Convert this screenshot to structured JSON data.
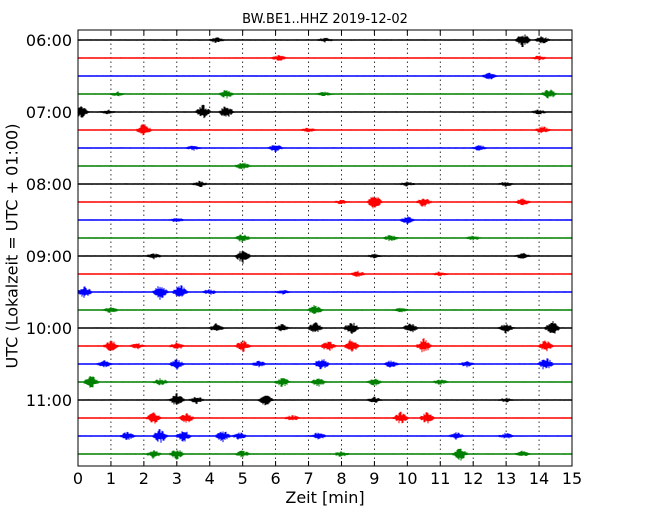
{
  "chart_data": {
    "type": "line",
    "title": "BW.BE1..HHZ 2019-12-02",
    "xlabel": "Zeit  [min]",
    "ylabel": "UTC (Lokalzeit = UTC + 01:00)",
    "xlim": [
      0,
      15
    ],
    "x_ticks": [
      "0",
      "1",
      "2",
      "3",
      "4",
      "5",
      "6",
      "7",
      "8",
      "9",
      "10",
      "11",
      "12",
      "13",
      "14",
      "15"
    ],
    "y_ticks": [
      "06:00",
      "07:00",
      "08:00",
      "09:00",
      "10:00",
      "11:00"
    ],
    "line_interval_minutes": 15,
    "start_time": "06:00",
    "end_time": "11:45",
    "trace_colors": [
      "#000000",
      "#ff0000",
      "#0000ff",
      "#008000"
    ],
    "grid": true,
    "traces": [
      {
        "start": "06:00",
        "events": [
          [
            13.5,
            1.0
          ],
          [
            14.1,
            0.5
          ],
          [
            4.2,
            0.4
          ],
          [
            7.5,
            0.3
          ]
        ]
      },
      {
        "start": "06:15",
        "events": [
          [
            6.1,
            0.4
          ],
          [
            14.0,
            0.3
          ]
        ]
      },
      {
        "start": "06:30",
        "events": [
          [
            12.5,
            0.5
          ]
        ]
      },
      {
        "start": "06:45",
        "events": [
          [
            4.5,
            0.6
          ],
          [
            14.3,
            0.7
          ],
          [
            1.2,
            0.3
          ],
          [
            7.5,
            0.3
          ]
        ]
      },
      {
        "start": "07:00",
        "events": [
          [
            0.1,
            0.9
          ],
          [
            3.8,
            1.0
          ],
          [
            4.5,
            0.9
          ],
          [
            0.9,
            0.3
          ],
          [
            14.0,
            0.3
          ]
        ]
      },
      {
        "start": "07:15",
        "events": [
          [
            2.0,
            0.9
          ],
          [
            14.1,
            0.5
          ],
          [
            7.0,
            0.3
          ]
        ]
      },
      {
        "start": "07:30",
        "events": [
          [
            6.0,
            0.5
          ],
          [
            12.2,
            0.4
          ],
          [
            3.5,
            0.3
          ]
        ]
      },
      {
        "start": "07:45",
        "events": [
          [
            5.0,
            0.5
          ]
        ]
      },
      {
        "start": "08:00",
        "events": [
          [
            3.7,
            0.4
          ],
          [
            10.0,
            0.3
          ],
          [
            13.0,
            0.3
          ]
        ]
      },
      {
        "start": "08:15",
        "events": [
          [
            9.0,
            1.0
          ],
          [
            10.5,
            0.7
          ],
          [
            13.5,
            0.5
          ],
          [
            8.0,
            0.3
          ]
        ]
      },
      {
        "start": "08:30",
        "events": [
          [
            10.0,
            0.5
          ],
          [
            3.0,
            0.3
          ]
        ]
      },
      {
        "start": "08:45",
        "events": [
          [
            5.0,
            0.6
          ],
          [
            9.5,
            0.5
          ],
          [
            12.0,
            0.3
          ]
        ]
      },
      {
        "start": "09:00",
        "events": [
          [
            5.0,
            1.0
          ],
          [
            2.3,
            0.4
          ],
          [
            13.5,
            0.4
          ],
          [
            9.0,
            0.3
          ]
        ]
      },
      {
        "start": "09:15",
        "events": [
          [
            8.5,
            0.4
          ],
          [
            11.0,
            0.3
          ]
        ]
      },
      {
        "start": "09:30",
        "events": [
          [
            0.2,
            0.8
          ],
          [
            2.5,
            1.0
          ],
          [
            3.1,
            1.0
          ],
          [
            4.0,
            0.4
          ],
          [
            6.2,
            0.3
          ]
        ]
      },
      {
        "start": "09:45",
        "events": [
          [
            7.2,
            0.7
          ],
          [
            1.0,
            0.4
          ],
          [
            9.8,
            0.3
          ]
        ]
      },
      {
        "start": "10:00",
        "events": [
          [
            4.2,
            0.6
          ],
          [
            6.2,
            0.5
          ],
          [
            7.2,
            0.8
          ],
          [
            8.3,
            0.9
          ],
          [
            10.1,
            0.7
          ],
          [
            13.0,
            0.7
          ],
          [
            14.4,
            1.0
          ]
        ]
      },
      {
        "start": "10:15",
        "events": [
          [
            1.0,
            0.8
          ],
          [
            3.0,
            0.6
          ],
          [
            5.0,
            0.8
          ],
          [
            7.6,
            0.8
          ],
          [
            8.3,
            1.0
          ],
          [
            10.5,
            1.0
          ],
          [
            14.2,
            0.8
          ],
          [
            1.8,
            0.4
          ]
        ]
      },
      {
        "start": "10:30",
        "events": [
          [
            0.8,
            0.5
          ],
          [
            3.0,
            0.7
          ],
          [
            7.4,
            0.9
          ],
          [
            9.5,
            0.5
          ],
          [
            14.2,
            1.0
          ],
          [
            5.5,
            0.4
          ],
          [
            11.8,
            0.4
          ]
        ]
      },
      {
        "start": "10:45",
        "events": [
          [
            0.4,
            0.9
          ],
          [
            2.5,
            0.5
          ],
          [
            6.2,
            0.7
          ],
          [
            7.3,
            0.6
          ],
          [
            9.0,
            0.5
          ],
          [
            11.0,
            0.4
          ]
        ]
      },
      {
        "start": "11:00",
        "events": [
          [
            3.0,
            0.9
          ],
          [
            5.7,
            0.8
          ],
          [
            3.6,
            0.5
          ],
          [
            9.0,
            0.4
          ],
          [
            13.0,
            0.3
          ]
        ]
      },
      {
        "start": "11:15",
        "events": [
          [
            2.3,
            0.8
          ],
          [
            3.3,
            0.7
          ],
          [
            9.8,
            0.9
          ],
          [
            10.6,
            0.8
          ],
          [
            6.5,
            0.4
          ]
        ]
      },
      {
        "start": "11:30",
        "events": [
          [
            1.5,
            0.6
          ],
          [
            2.5,
            1.0
          ],
          [
            3.2,
            0.9
          ],
          [
            4.4,
            0.8
          ],
          [
            4.9,
            0.5
          ],
          [
            7.3,
            0.5
          ],
          [
            11.5,
            0.5
          ],
          [
            13.0,
            0.4
          ]
        ]
      },
      {
        "start": "11:45",
        "events": [
          [
            2.3,
            0.6
          ],
          [
            3.0,
            0.7
          ],
          [
            11.6,
            0.9
          ],
          [
            5.0,
            0.5
          ],
          [
            8.0,
            0.4
          ],
          [
            13.5,
            0.4
          ]
        ]
      }
    ]
  }
}
